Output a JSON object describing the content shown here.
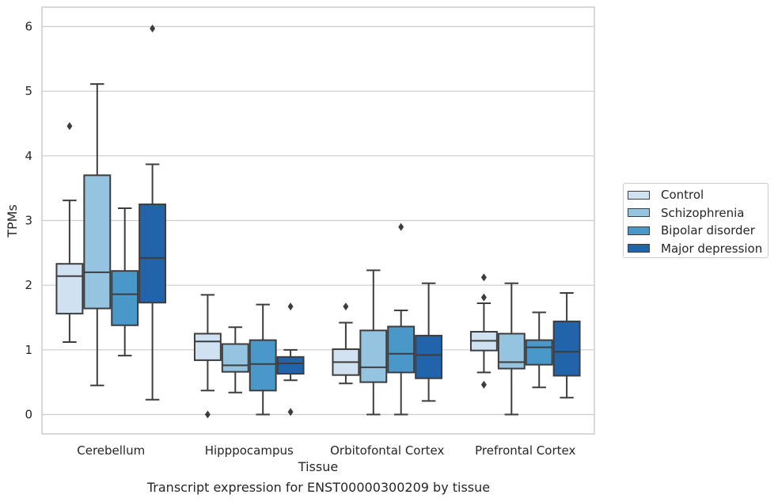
{
  "chart_data": {
    "type": "box",
    "caption": "Transcript expression for ENST00000300209 by tissue",
    "xlabel": "Tissue",
    "ylabel": "TPMs",
    "ylim": [
      -0.3,
      6.3
    ],
    "yticks": [
      0,
      1,
      2,
      3,
      4,
      5,
      6
    ],
    "grid": true,
    "legend_position": "right",
    "categories": [
      "Cerebellum",
      "Hipppocampus",
      "Orbitofontal Cortex",
      "Prefrontal Cortex"
    ],
    "series": [
      {
        "name": "Control",
        "color": "#d0e1f2",
        "boxes": [
          {
            "whisker_low": 1.12,
            "q1": 1.56,
            "median": 2.14,
            "q3": 2.33,
            "whisker_high": 3.31,
            "outliers": [
              4.46
            ]
          },
          {
            "whisker_low": 0.37,
            "q1": 0.84,
            "median": 1.13,
            "q3": 1.25,
            "whisker_high": 1.85,
            "outliers": [
              0.0
            ]
          },
          {
            "whisker_low": 0.48,
            "q1": 0.61,
            "median": 0.81,
            "q3": 1.01,
            "whisker_high": 1.42,
            "outliers": [
              1.67
            ]
          },
          {
            "whisker_low": 0.65,
            "q1": 0.99,
            "median": 1.14,
            "q3": 1.28,
            "whisker_high": 1.72,
            "outliers": [
              0.46,
              1.81,
              2.12
            ]
          }
        ]
      },
      {
        "name": "Schizophrenia",
        "color": "#94c4df",
        "boxes": [
          {
            "whisker_low": 0.45,
            "q1": 1.64,
            "median": 2.2,
            "q3": 3.7,
            "whisker_high": 5.11,
            "outliers": []
          },
          {
            "whisker_low": 0.34,
            "q1": 0.66,
            "median": 0.76,
            "q3": 1.09,
            "whisker_high": 1.35,
            "outliers": []
          },
          {
            "whisker_low": 0.0,
            "q1": 0.5,
            "median": 0.73,
            "q3": 1.3,
            "whisker_high": 2.23,
            "outliers": []
          },
          {
            "whisker_low": 0.0,
            "q1": 0.71,
            "median": 0.81,
            "q3": 1.25,
            "whisker_high": 2.03,
            "outliers": []
          }
        ]
      },
      {
        "name": "Bipolar disorder",
        "color": "#4a98c9",
        "boxes": [
          {
            "whisker_low": 0.91,
            "q1": 1.38,
            "median": 1.86,
            "q3": 2.22,
            "whisker_high": 3.19,
            "outliers": []
          },
          {
            "whisker_low": 0.0,
            "q1": 0.37,
            "median": 0.78,
            "q3": 1.15,
            "whisker_high": 1.7,
            "outliers": []
          },
          {
            "whisker_low": 0.0,
            "q1": 0.65,
            "median": 0.94,
            "q3": 1.36,
            "whisker_high": 1.61,
            "outliers": [
              2.9
            ]
          },
          {
            "whisker_low": 0.42,
            "q1": 0.77,
            "median": 1.04,
            "q3": 1.15,
            "whisker_high": 1.58,
            "outliers": []
          }
        ]
      },
      {
        "name": "Major depression",
        "color": "#2164ab",
        "boxes": [
          {
            "whisker_low": 0.23,
            "q1": 1.73,
            "median": 2.42,
            "q3": 3.25,
            "whisker_high": 3.87,
            "outliers": [
              5.97
            ]
          },
          {
            "whisker_low": 0.53,
            "q1": 0.63,
            "median": 0.79,
            "q3": 0.89,
            "whisker_high": 1.0,
            "outliers": [
              0.04,
              1.67
            ]
          },
          {
            "whisker_low": 0.21,
            "q1": 0.56,
            "median": 0.92,
            "q3": 1.22,
            "whisker_high": 2.03,
            "outliers": []
          },
          {
            "whisker_low": 0.26,
            "q1": 0.6,
            "median": 0.97,
            "q3": 1.44,
            "whisker_high": 1.88,
            "outliers": []
          }
        ]
      }
    ]
  }
}
